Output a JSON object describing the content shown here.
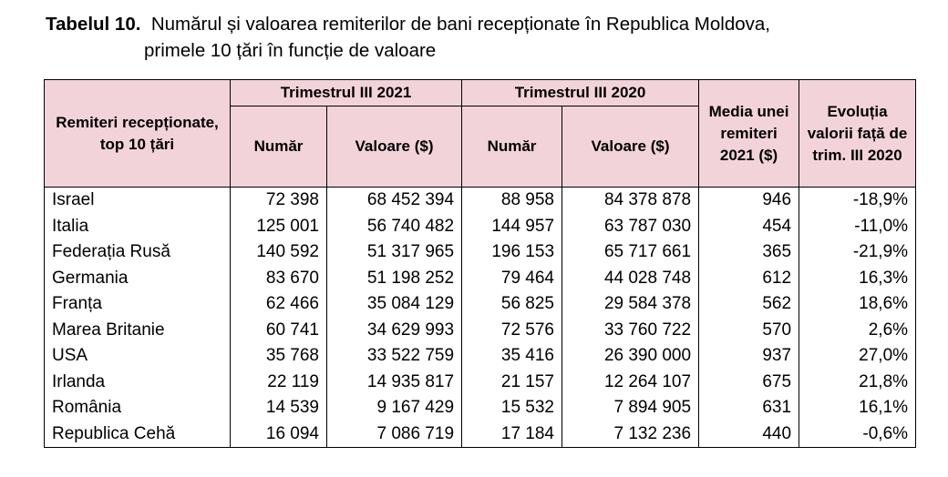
{
  "caption": {
    "label": "Tabelul 10.",
    "title_line1": "Numărul și valoarea remiterilor de bani recepționate în Republica Moldova,",
    "title_line2": "primele 10 țări în funcție de valoare"
  },
  "table": {
    "headers": {
      "row_label": "Remiteri recepționate, top 10 țări",
      "period1": "Trimestrul III 2021",
      "period2": "Trimestrul III 2020",
      "avg": "Media unei remiteri 2021 ($)",
      "evolution": "Evoluția valorii față de trim. III 2020",
      "count": "Număr",
      "value": "Valoare ($)"
    },
    "rows": [
      {
        "country": "Israel",
        "n2021": "72 398",
        "v2021": "68 452 394",
        "n2020": "88 958",
        "v2020": "84 378 878",
        "avg": "946",
        "evo": "-18,9%"
      },
      {
        "country": "Italia",
        "n2021": "125 001",
        "v2021": "56 740 482",
        "n2020": "144 957",
        "v2020": "63 787 030",
        "avg": "454",
        "evo": "-11,0%"
      },
      {
        "country": "Federația Rusă",
        "n2021": "140 592",
        "v2021": "51 317 965",
        "n2020": "196 153",
        "v2020": "65 717 661",
        "avg": "365",
        "evo": "-21,9%"
      },
      {
        "country": "Germania",
        "n2021": "83 670",
        "v2021": "51 198 252",
        "n2020": "79 464",
        "v2020": "44 028 748",
        "avg": "612",
        "evo": "16,3%"
      },
      {
        "country": "Franța",
        "n2021": "62 466",
        "v2021": "35 084 129",
        "n2020": "56 825",
        "v2020": "29 584 378",
        "avg": "562",
        "evo": "18,6%"
      },
      {
        "country": "Marea Britanie",
        "n2021": "60 741",
        "v2021": "34 629 993",
        "n2020": "72 576",
        "v2020": "33 760 722",
        "avg": "570",
        "evo": "2,6%"
      },
      {
        "country": "USA",
        "n2021": "35 768",
        "v2021": "33 522 759",
        "n2020": "35 416",
        "v2020": "26 390 000",
        "avg": "937",
        "evo": "27,0%"
      },
      {
        "country": "Irlanda",
        "n2021": "22 119",
        "v2021": "14 935 817",
        "n2020": "21 157",
        "v2020": "12 264 107",
        "avg": "675",
        "evo": "21,8%"
      },
      {
        "country": "România",
        "n2021": "14 539",
        "v2021": "9 167 429",
        "n2020": "15 532",
        "v2020": "7 894 905",
        "avg": "631",
        "evo": "16,1%"
      },
      {
        "country": "Republica Cehă",
        "n2021": "16 094",
        "v2021": "7 086 719",
        "n2020": "17 184",
        "v2020": "7 132 236",
        "avg": "440",
        "evo": "-0,6%"
      }
    ]
  }
}
